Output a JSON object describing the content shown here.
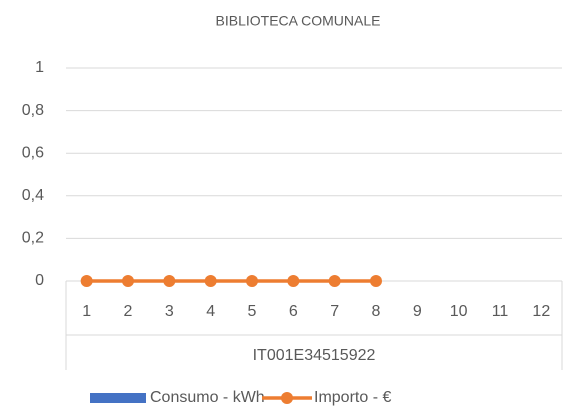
{
  "chart_data": {
    "type": "combo",
    "title": "BIBLIOTECA COMUNALE",
    "categories": [
      "1",
      "2",
      "3",
      "4",
      "5",
      "6",
      "7",
      "8",
      "9",
      "10",
      "11",
      "12"
    ],
    "category_group": "IT001E34515922",
    "series": [
      {
        "name": "Consumo - kWh",
        "type": "bar",
        "color": "#4472c4",
        "values": [
          0,
          0,
          0,
          0,
          0,
          0,
          0,
          0,
          null,
          null,
          null,
          null
        ]
      },
      {
        "name": "Importo - €",
        "type": "line",
        "color": "#ed7d31",
        "values": [
          0,
          0,
          0,
          0,
          0,
          0,
          0,
          0,
          null,
          null,
          null,
          null
        ]
      }
    ],
    "ylim": [
      0,
      1
    ],
    "yticks": [
      0,
      {
        "value": 0.2,
        "label": "0,2"
      },
      {
        "value": 0.4,
        "label": "0,4"
      },
      {
        "value": 0.6,
        "label": "0,6"
      },
      {
        "value": 0.8,
        "label": "0,8"
      },
      1
    ],
    "grid": true,
    "legend": "bottom"
  }
}
